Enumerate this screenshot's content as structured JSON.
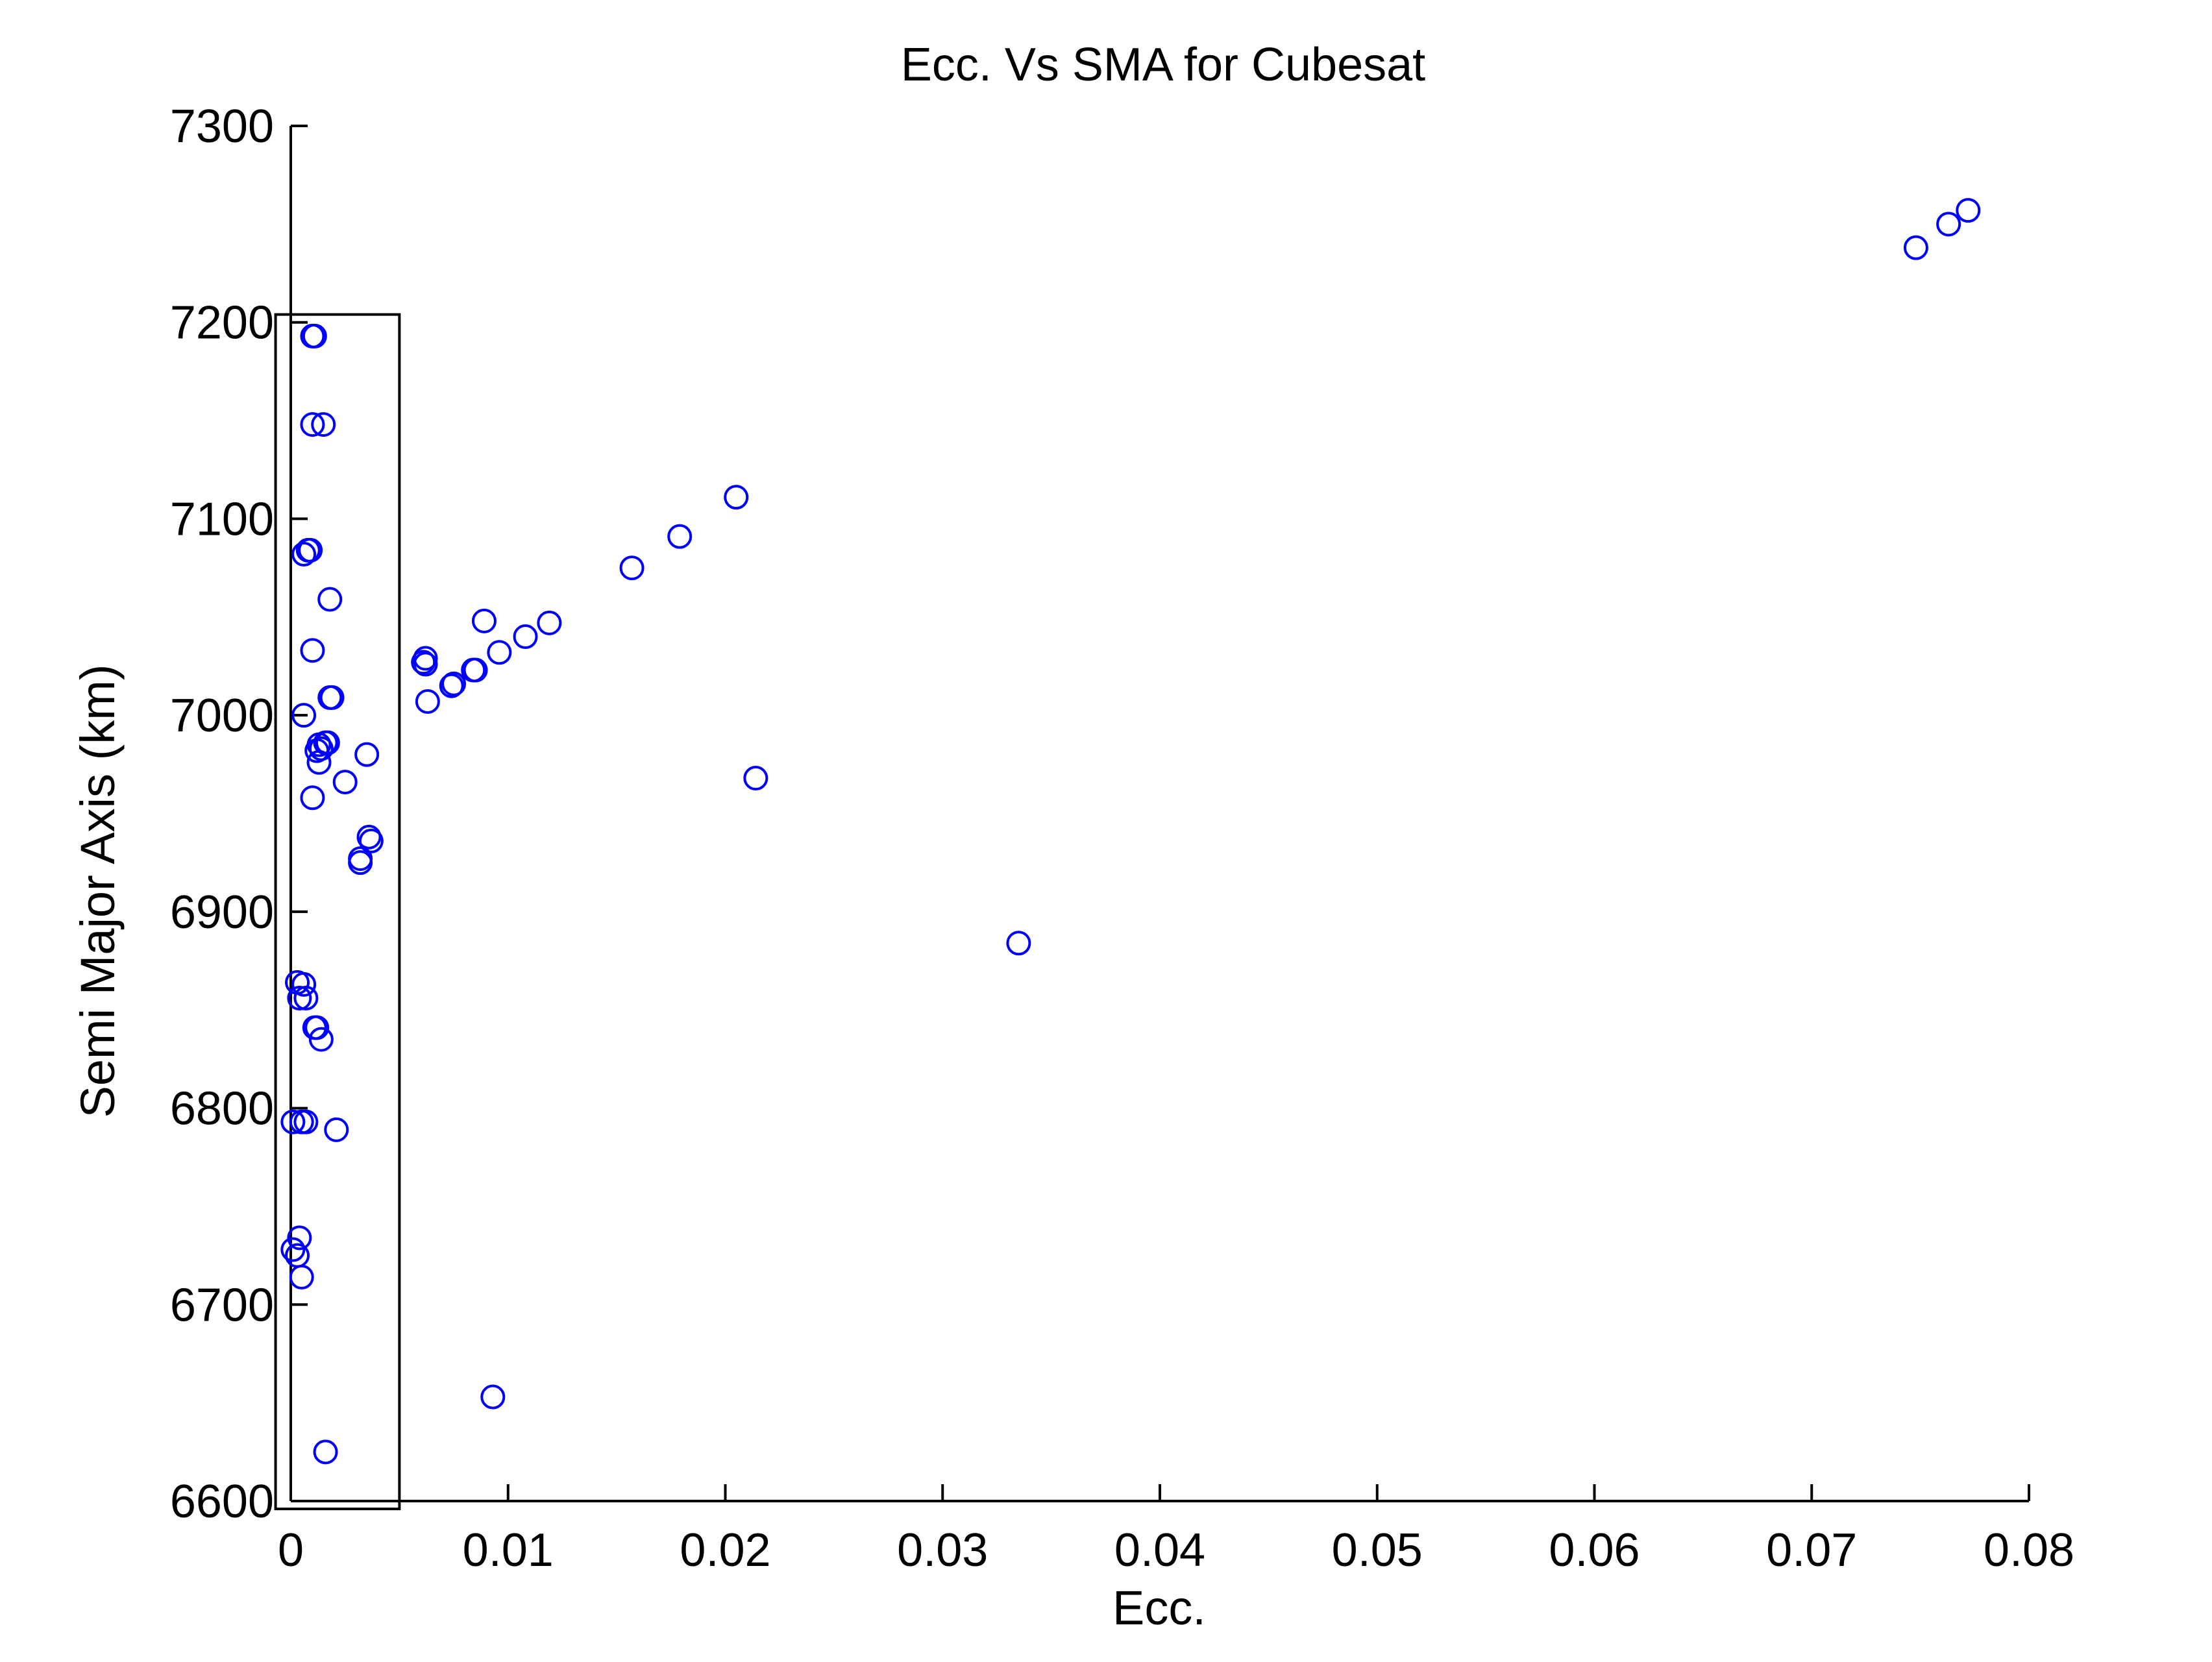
{
  "chart_data": {
    "type": "scatter",
    "title": "Ecc. Vs SMA for Cubesat",
    "xlabel": "Ecc.",
    "ylabel": "Semi Major Axis (km)",
    "xlim": [
      0,
      0.08
    ],
    "ylim": [
      6600,
      7300
    ],
    "xticks": [
      0,
      0.01,
      0.02,
      0.03,
      0.04,
      0.05,
      0.06,
      0.07,
      0.08
    ],
    "xtick_labels": [
      "0",
      "0.01",
      "0.02",
      "0.03",
      "0.04",
      "0.05",
      "0.06",
      "0.07",
      "0.08"
    ],
    "yticks": [
      6600,
      6700,
      6800,
      6900,
      7000,
      7100,
      7200,
      7300
    ],
    "ytick_labels": [
      "6600",
      "6700",
      "6800",
      "6900",
      "7000",
      "7100",
      "7200",
      "7300"
    ],
    "grid": false,
    "marker": "circle-open",
    "series_color": "#0000ff",
    "annotation_box": {
      "x": [
        -0.0007,
        0.005
      ],
      "y": [
        6596,
        7204
      ]
    },
    "series": [
      {
        "x": [
          0.001,
          0.0011,
          0.001,
          0.0015,
          0.0009,
          0.0008,
          0.0006,
          0.0018,
          0.001,
          0.0018,
          0.0019,
          0.0006,
          0.0013,
          0.0017,
          0.0014,
          0.0013,
          0.0016,
          0.0012,
          0.0035,
          0.0025,
          0.001,
          0.0036,
          0.0037,
          0.0032,
          0.0032,
          0.0003,
          0.0006,
          0.0004,
          0.0007,
          0.0011,
          0.0012,
          0.0014,
          0.0001,
          0.0005,
          0.0007,
          0.0021,
          0.0004,
          0.0001,
          0.0003,
          0.0005,
          0.0016,
          0.0062,
          0.0061,
          0.0063,
          0.0062,
          0.0075,
          0.0074,
          0.0085,
          0.0084,
          0.0089,
          0.0096,
          0.0108,
          0.0119,
          0.0157,
          0.0179,
          0.0205,
          0.0214,
          0.0093,
          0.0335,
          0.0748,
          0.0763,
          0.0772
        ],
        "y": [
          7193,
          7193,
          7148,
          7148,
          7084,
          7084,
          7082,
          7059,
          7033,
          7009,
          7009,
          7000,
          6985,
          6986,
          6983,
          6976,
          6986,
          6982,
          6980,
          6966,
          6958,
          6938,
          6936,
          6925,
          6927,
          6864,
          6863,
          6856,
          6856,
          6841,
          6841,
          6835,
          6793,
          6793,
          6793,
          6789,
          6734,
          6728,
          6725,
          6714,
          6625,
          7029,
          7027,
          7007,
          7026,
          7016,
          7015,
          7023,
          7023,
          7048,
          7032,
          7040,
          7047,
          7075,
          7091,
          7111,
          6968,
          6653,
          6884,
          7238,
          7250,
          7257
        ]
      }
    ]
  }
}
